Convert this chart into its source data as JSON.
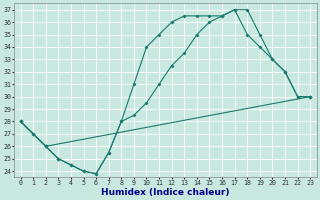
{
  "xlabel": "Humidex (Indice chaleur)",
  "xlim": [
    -0.5,
    23.5
  ],
  "ylim": [
    23.5,
    37.5
  ],
  "yticks": [
    24,
    25,
    26,
    27,
    28,
    29,
    30,
    31,
    32,
    33,
    34,
    35,
    36,
    37
  ],
  "xticks": [
    0,
    1,
    2,
    3,
    4,
    5,
    6,
    7,
    8,
    9,
    10,
    11,
    12,
    13,
    14,
    15,
    16,
    17,
    18,
    19,
    20,
    21,
    22,
    23
  ],
  "bg_color": "#c8e8e0",
  "grid_color": "#ffffff",
  "line_color": "#1a7a6e",
  "line1_x": [
    0,
    1,
    2,
    3,
    4,
    5,
    6,
    7,
    8,
    9,
    10,
    11,
    12,
    13,
    14,
    15,
    16,
    17,
    18,
    19,
    20,
    21,
    22,
    23
  ],
  "line1_y": [
    28,
    27,
    26,
    25,
    24.5,
    24,
    23.8,
    25.5,
    28,
    31,
    34,
    35,
    36,
    36.5,
    36.5,
    36.5,
    36.5,
    37,
    37,
    35,
    33,
    32,
    30,
    30
  ],
  "line2_x": [
    0,
    1,
    2,
    3,
    4,
    5,
    6,
    7,
    8,
    9,
    10,
    11,
    12,
    13,
    14,
    15,
    16,
    17,
    18,
    19,
    20,
    21,
    22,
    23
  ],
  "line2_y": [
    28,
    27,
    26,
    25,
    24.5,
    24,
    23.8,
    25.5,
    28,
    28.5,
    29.5,
    31,
    32.5,
    33.5,
    35,
    36,
    36.5,
    37,
    35,
    34,
    33,
    32,
    30,
    30
  ],
  "line3_x": [
    0,
    2,
    23
  ],
  "line3_y": [
    28,
    26,
    30
  ],
  "xlabel_color": "#00008b",
  "xlabel_fontsize": 6.5,
  "tick_fontsize": 4.8,
  "line_width": 0.8,
  "marker_size": 2.0
}
